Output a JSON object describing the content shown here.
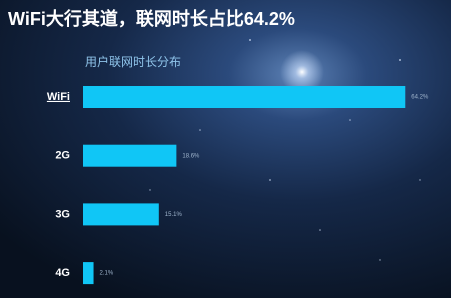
{
  "chart_data": {
    "type": "bar",
    "orientation": "horizontal",
    "title": "WiFi大行其道，联网时长占比64.2%",
    "subtitle": "用户联网时长分布",
    "categories": [
      "WiFi",
      "2G",
      "3G",
      "4G"
    ],
    "values": [
      64.2,
      18.6,
      15.1,
      2.1
    ],
    "value_labels": [
      "64.2%",
      "18.6%",
      "15.1%",
      "2.1%"
    ],
    "color": "#10c6f6"
  }
}
